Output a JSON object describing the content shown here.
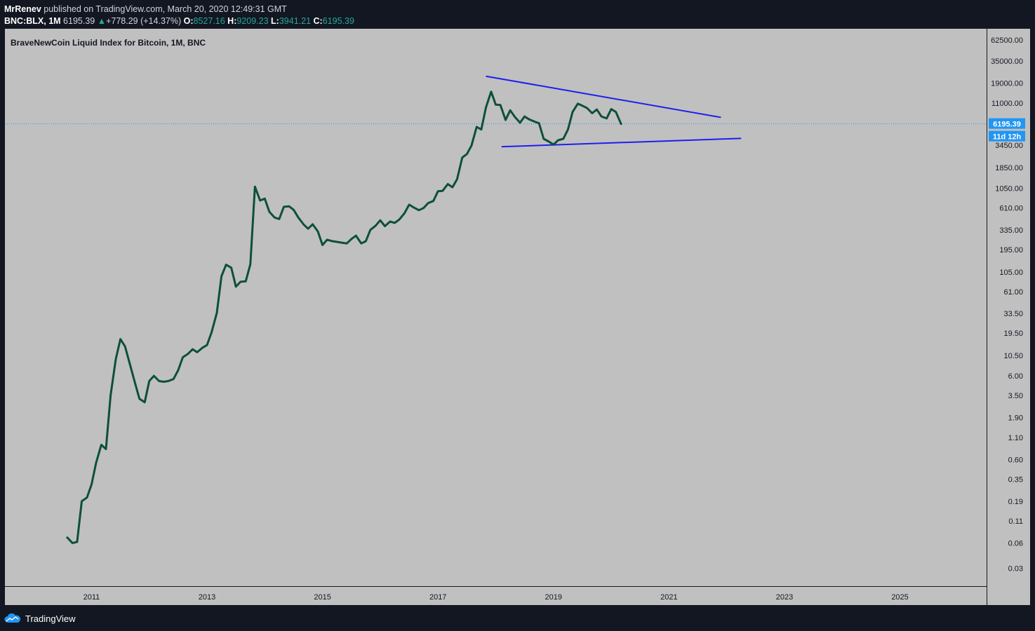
{
  "header": {
    "author": "MrRenev",
    "published_text": "published on TradingView.com, March 20, 2020 12:49:31 GMT",
    "symbol": "BNC:BLX, 1M",
    "last": "6195.39",
    "change": "+778.29 (+14.37%)",
    "o_label": "O:",
    "o_value": "8527.16",
    "h_label": "H:",
    "h_value": "9209.23",
    "l_label": "L:",
    "l_value": "3941.21",
    "c_label": "C:",
    "c_value": "6195.39"
  },
  "footer": {
    "brand": "TradingView"
  },
  "colors": {
    "plot_bg": "#c0c0c0",
    "page_bg": "#131722",
    "price_line": "#0d4f3c",
    "trend_line": "#1e1ef0",
    "badge": "#2196f3",
    "up": "#26a69a"
  },
  "chart_data": {
    "type": "line",
    "title": "BraveNewCoin Liquid Index for Bitcoin, 1M, BNC",
    "xlabel": "",
    "ylabel": "",
    "y_scale": "log",
    "xlim": [
      2009.5,
      2026.5
    ],
    "ylim": [
      0.018,
      85000
    ],
    "x_ticks": [
      2011,
      2013,
      2015,
      2017,
      2019,
      2021,
      2023,
      2025
    ],
    "x_tick_labels": [
      "2011",
      "2013",
      "2015",
      "2017",
      "2019",
      "2021",
      "2023",
      "2025"
    ],
    "y_ticks": [
      0.03,
      0.06,
      0.11,
      0.19,
      0.35,
      0.6,
      1.1,
      1.9,
      3.5,
      6,
      10.5,
      19.5,
      33.5,
      61,
      105,
      195,
      335,
      610,
      1050,
      1850,
      3450,
      11000,
      19000,
      35000,
      62500
    ],
    "y_tick_labels": [
      "0.03",
      "0.06",
      "0.11",
      "0.19",
      "0.35",
      "0.60",
      "1.10",
      "1.90",
      "3.50",
      "6.00",
      "10.50",
      "19.50",
      "33.50",
      "61.00",
      "105.00",
      "195.00",
      "335.00",
      "610.00",
      "1050.00",
      "1850.00",
      "3450.00",
      "11000.00",
      "19000.00",
      "35000.00",
      "62500.00"
    ],
    "last_value": 6195.39,
    "last_value_label": "6195.39",
    "countdown_label": "11d 12h",
    "series": [
      {
        "name": "BNC:BLX",
        "x": [
          2010.58,
          2010.67,
          2010.75,
          2010.83,
          2010.92,
          2011.0,
          2011.08,
          2011.17,
          2011.25,
          2011.33,
          2011.42,
          2011.5,
          2011.58,
          2011.67,
          2011.75,
          2011.83,
          2011.92,
          2012.0,
          2012.08,
          2012.17,
          2012.25,
          2012.33,
          2012.42,
          2012.5,
          2012.58,
          2012.67,
          2012.75,
          2012.83,
          2012.92,
          2013.0,
          2013.08,
          2013.17,
          2013.25,
          2013.33,
          2013.42,
          2013.5,
          2013.58,
          2013.67,
          2013.75,
          2013.83,
          2013.92,
          2014.0,
          2014.08,
          2014.17,
          2014.25,
          2014.33,
          2014.42,
          2014.5,
          2014.58,
          2014.67,
          2014.75,
          2014.83,
          2014.92,
          2015.0,
          2015.08,
          2015.17,
          2015.25,
          2015.33,
          2015.42,
          2015.5,
          2015.58,
          2015.67,
          2015.75,
          2015.83,
          2015.92,
          2016.0,
          2016.08,
          2016.17,
          2016.25,
          2016.33,
          2016.42,
          2016.5,
          2016.58,
          2016.67,
          2016.75,
          2016.83,
          2016.92,
          2017.0,
          2017.08,
          2017.17,
          2017.25,
          2017.33,
          2017.42,
          2017.5,
          2017.58,
          2017.67,
          2017.75,
          2017.83,
          2017.92,
          2018.0,
          2018.08,
          2018.17,
          2018.25,
          2018.33,
          2018.42,
          2018.5,
          2018.58,
          2018.67,
          2018.75,
          2018.83,
          2018.92,
          2019.0,
          2019.08,
          2019.17,
          2019.25,
          2019.33,
          2019.42,
          2019.5,
          2019.58,
          2019.67,
          2019.75,
          2019.83,
          2019.92,
          2020.0,
          2020.08,
          2020.17
        ],
        "y": [
          0.07,
          0.06,
          0.062,
          0.19,
          0.21,
          0.3,
          0.55,
          0.9,
          0.8,
          3.5,
          9.5,
          16.5,
          13.5,
          8,
          5,
          3.2,
          2.9,
          5.2,
          6,
          5.2,
          5.1,
          5.2,
          5.5,
          7,
          10,
          11,
          12.5,
          11.5,
          13,
          14,
          20,
          34,
          93,
          128,
          118,
          70,
          80,
          81,
          130,
          1100,
          750,
          790,
          550,
          470,
          450,
          630,
          640,
          580,
          470,
          390,
          345,
          390,
          320,
          220,
          255,
          245,
          240,
          235,
          230,
          260,
          285,
          230,
          245,
          335,
          375,
          435,
          370,
          420,
          405,
          445,
          530,
          670,
          620,
          575,
          610,
          700,
          740,
          970,
          980,
          1180,
          1080,
          1350,
          2450,
          2700,
          3400,
          5700,
          5300,
          9700,
          15000,
          10500,
          10400,
          6900,
          9000,
          7500,
          6400,
          7600,
          7000,
          6600,
          6300,
          4100,
          3800,
          3500,
          3950,
          4100,
          5300,
          8600,
          10800,
          10200,
          9600,
          8300,
          9200,
          7600,
          7200,
          9300,
          8600,
          6195
        ]
      }
    ],
    "trend_lines": [
      {
        "name": "upper-trendline",
        "x1": 2017.83,
        "y1": 23000,
        "x2": 2021.9,
        "y2": 7400
      },
      {
        "name": "lower-trendline",
        "x1": 2018.1,
        "y1": 3300,
        "x2": 2022.25,
        "y2": 4150
      }
    ]
  }
}
